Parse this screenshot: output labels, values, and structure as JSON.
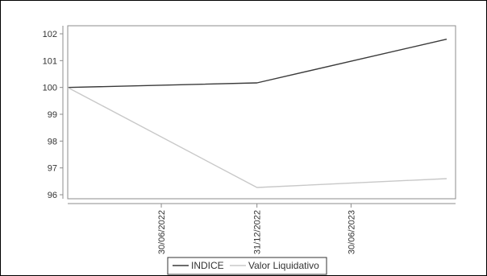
{
  "chart_data": {
    "type": "line",
    "x": [
      "30/06/2022",
      "31/12/2022",
      "30/06/2023"
    ],
    "x_tick_labels": [
      "30/06/2022",
      "31/12/2022",
      "30/06/2023"
    ],
    "series": [
      {
        "name": "INDICE",
        "color": "#3a3a3a",
        "points": [
          {
            "x": "01/01/2022",
            "y": 100.0
          },
          {
            "x": "31/12/2022",
            "y": 100.17
          },
          {
            "x": "31/12/2023",
            "y": 101.8
          }
        ]
      },
      {
        "name": "Valor Liquidativo",
        "color": "#c8c8c8",
        "points": [
          {
            "x": "01/01/2022",
            "y": 100.0
          },
          {
            "x": "31/12/2022",
            "y": 96.27
          },
          {
            "x": "31/12/2023",
            "y": 96.6
          }
        ]
      }
    ],
    "y_ticks": [
      96,
      97,
      98,
      99,
      100,
      101,
      102
    ],
    "ylim": [
      95.85,
      102.3
    ],
    "grid": false,
    "legend_position": "bottom",
    "title": "",
    "xlabel": "",
    "ylabel": ""
  }
}
